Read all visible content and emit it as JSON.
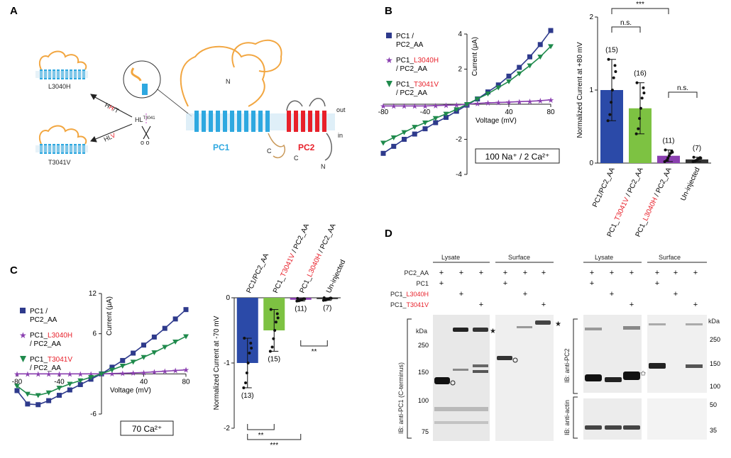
{
  "panels": {
    "a": {
      "letter": "A",
      "mutant_top": "L3040H",
      "mutant_bottom": "T3041V",
      "arrow_top_pre": "H",
      "arrow_top_red": "H",
      "arrow_top_post": "/T",
      "arrow_bottom_pre": "HL",
      "arrow_bottom_red": "V",
      "motif_text": "HL",
      "motif_sup": "T3041",
      "scissors_labels": "o o",
      "pc1": "PC1",
      "pc2": "PC2",
      "n_top": "N",
      "n_bottom": "N",
      "c_left": "C",
      "c_right": "C",
      "out": "out",
      "in": "in"
    },
    "b": {
      "letter": "B",
      "legend": [
        {
          "line1": "PC1 /",
          "line2": "PC2_AA",
          "red": ""
        },
        {
          "line1": "PC1_",
          "red": "L3040H",
          "line2": "/ PC2_AA"
        },
        {
          "line1": "PC1_",
          "red": "T3041V",
          "line2": "/ PC2_AA"
        }
      ],
      "condition": "100 Na⁺ / 2 Ca²⁺",
      "bar_ylabel": "Normalized Current at +80 mV",
      "sig_top": "***",
      "sig_ns1": "n.s.",
      "sig_ns2": "n.s."
    },
    "c": {
      "letter": "C",
      "legend": [
        {
          "line1": "PC1 /",
          "line2": "PC2_AA",
          "red": ""
        },
        {
          "line1": "PC1_",
          "red": "L3040H",
          "line2": "/ PC2_AA"
        },
        {
          "line1": "PC1_",
          "red": "T3041V",
          "line2": "/ PC2_AA"
        }
      ],
      "condition": "70 Ca²⁺",
      "bar_ylabel": "Normalized Current at -70 mV",
      "sig1": "**",
      "sig2": "**",
      "sig3": "***"
    },
    "d": {
      "letter": "D",
      "lysate": "Lysate",
      "surface": "Surface",
      "rows": [
        "PC2_AA",
        "PC1",
        "PC1_L3040H",
        "PC1_T3041V"
      ],
      "row_prefix": "PC1_",
      "row3_red": "L3040H",
      "row4_red": "T3041V",
      "plus": "+",
      "kda": "kDa",
      "ib_left": "IB: anti-PC1 (C-terminus)",
      "ib_right_top": "IB: anti-PC2",
      "ib_right_bottom": "IB: anti-actin",
      "left_markers": [
        "250",
        "150",
        "100",
        "75"
      ],
      "right_markers": [
        "250",
        "150",
        "100"
      ],
      "actin_markers": [
        "50",
        "35"
      ]
    }
  },
  "chart_data": [
    {
      "type": "line",
      "title": "",
      "xlabel": "Voltage (mV)",
      "ylabel": "Current (μA)",
      "xlim": [
        -80,
        80
      ],
      "ylim": [
        -4,
        4
      ],
      "xticks": [
        -80,
        -40,
        40,
        80
      ],
      "yticks": [
        -4,
        -2,
        2,
        4
      ],
      "x": [
        -80,
        -70,
        -60,
        -50,
        -40,
        -30,
        -20,
        -10,
        0,
        10,
        20,
        30,
        40,
        50,
        60,
        70,
        80
      ],
      "series": [
        {
          "name": "PC1 / PC2_AA",
          "color": "#2e3a8c",
          "values": [
            -2.8,
            -2.4,
            -2.0,
            -1.7,
            -1.4,
            -1.05,
            -0.75,
            -0.4,
            -0.05,
            0.3,
            0.7,
            1.1,
            1.6,
            2.1,
            2.7,
            3.4,
            4.2
          ]
        },
        {
          "name": "PC1_L3040H / PC2_AA",
          "color": "#8a3fb0",
          "values": [
            -0.1,
            -0.1,
            -0.1,
            -0.1,
            -0.1,
            -0.08,
            -0.06,
            -0.05,
            0.0,
            0.05,
            0.08,
            0.1,
            0.12,
            0.15,
            0.17,
            0.2,
            0.25
          ]
        },
        {
          "name": "PC1_T3041V / PC2_AA",
          "color": "#1f8a4c",
          "values": [
            -2.2,
            -1.9,
            -1.6,
            -1.3,
            -1.05,
            -0.8,
            -0.55,
            -0.3,
            0.0,
            0.3,
            0.6,
            0.95,
            1.3,
            1.75,
            2.2,
            2.7,
            3.3
          ]
        }
      ]
    },
    {
      "type": "bar",
      "title": "",
      "ylabel": "Normalized Current at +80 mV",
      "ylim": [
        0,
        2
      ],
      "yticks": [
        0,
        1,
        2
      ],
      "categories": [
        "PC1/PC2_AA",
        "PC1_T3041V / PC2_AA",
        "PC1_L3040H / PC2_AA",
        "Un-injected"
      ],
      "values": [
        1.0,
        0.75,
        0.1,
        0.05
      ],
      "errors": [
        0.42,
        0.35,
        0.08,
        0.03
      ],
      "n": [
        "(15)",
        "(16)",
        "(11)",
        "(7)"
      ],
      "colors": [
        "#2b4aa8",
        "#7dc242",
        "#8a3fb0",
        "#333333"
      ]
    },
    {
      "type": "line",
      "title": "",
      "xlabel": "Voltage (mV)",
      "ylabel": "Current (μA)",
      "xlim": [
        -80,
        80
      ],
      "ylim": [
        -6,
        12
      ],
      "xticks": [
        -80,
        -40,
        40,
        80
      ],
      "yticks": [
        -6,
        6,
        12
      ],
      "x": [
        -80,
        -70,
        -60,
        -50,
        -40,
        -30,
        -20,
        -10,
        0,
        10,
        20,
        30,
        40,
        50,
        60,
        70,
        80
      ],
      "series": [
        {
          "name": "PC1 / PC2_AA",
          "color": "#2e3a8c",
          "values": [
            -2.5,
            -4.5,
            -4.6,
            -4.0,
            -3.2,
            -2.4,
            -1.6,
            -0.8,
            0.0,
            1.0,
            2.0,
            3.1,
            4.3,
            5.5,
            6.8,
            8.2,
            9.6
          ]
        },
        {
          "name": "PC1_L3040H / PC2_AA",
          "color": "#8a3fb0",
          "values": [
            0.0,
            0.0,
            0.0,
            0.0,
            0.0,
            0.0,
            0.0,
            0.0,
            0.0,
            0.05,
            0.1,
            0.15,
            0.2,
            0.3,
            0.4,
            0.5,
            0.6
          ]
        },
        {
          "name": "PC1_T3041V / PC2_AA",
          "color": "#1f8a4c",
          "values": [
            -1.8,
            -3.0,
            -3.2,
            -2.8,
            -2.1,
            -1.5,
            -1.0,
            -0.5,
            0.0,
            0.6,
            1.2,
            1.8,
            2.5,
            3.2,
            4.0,
            4.8,
            5.6
          ]
        }
      ]
    },
    {
      "type": "bar",
      "title": "",
      "ylabel": "Normalized Current at -70 mV",
      "ylim": [
        -2,
        0
      ],
      "yticks": [
        -2,
        -1,
        0
      ],
      "categories": [
        "PC1/PC2_AA",
        "PC1_T3041V / PC2_AA",
        "PC1_L3040H / PC2_AA",
        "Un-injected"
      ],
      "values": [
        -1.0,
        -0.5,
        -0.03,
        -0.02
      ],
      "errors": [
        0.38,
        0.32,
        0.02,
        0.02
      ],
      "n": [
        "(13)",
        "(15)",
        "(11)",
        "(7)"
      ],
      "colors": [
        "#2b4aa8",
        "#7dc242",
        "#8a3fb0",
        "#333333"
      ]
    }
  ]
}
